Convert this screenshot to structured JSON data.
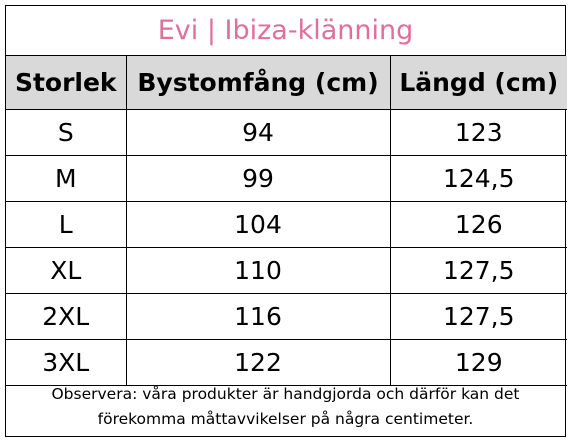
{
  "title": "Evi | Ibiza-klänning",
  "colors": {
    "title_text": "#e06f9a",
    "header_bg": "#d9d9d9",
    "border": "#000000"
  },
  "table": {
    "headers": [
      "Storlek",
      "Bystomfång (cm)",
      "Längd (cm)"
    ],
    "rows": [
      [
        "S",
        "94",
        "123"
      ],
      [
        "M",
        "99",
        "124,5"
      ],
      [
        "L",
        "104",
        "126"
      ],
      [
        "XL",
        "110",
        "127,5"
      ],
      [
        "2XL",
        "116",
        "127,5"
      ],
      [
        "3XL",
        "122",
        "129"
      ]
    ]
  },
  "note": {
    "line1": "Observera: våra produkter är handgjorda och därför kan det",
    "line2": "förekomma måttavvikelser på några centimeter."
  }
}
